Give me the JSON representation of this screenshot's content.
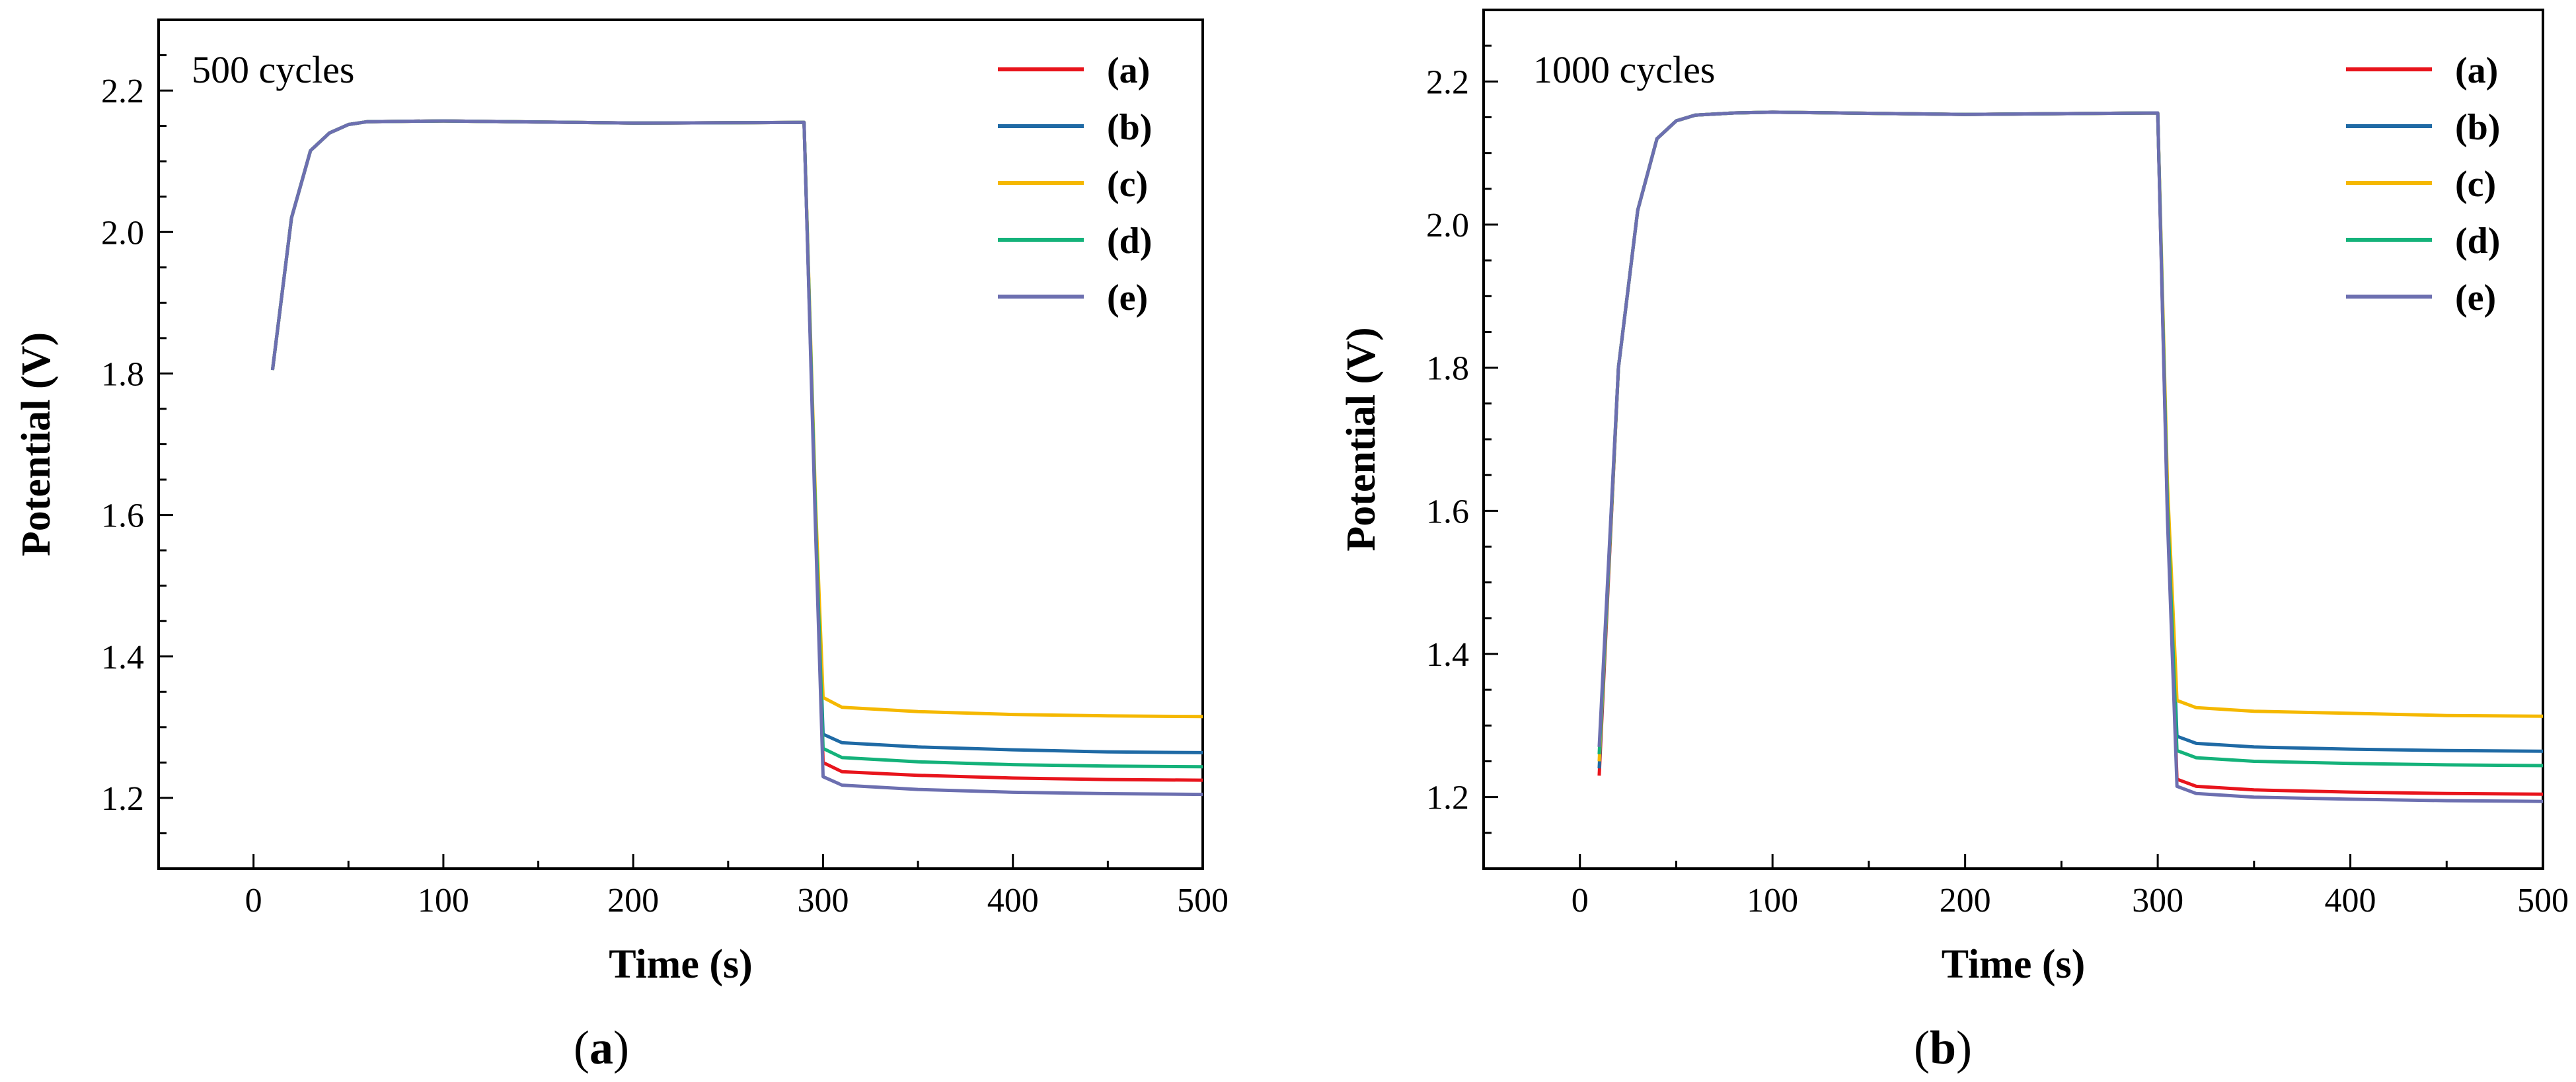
{
  "chart_data": [
    {
      "type": "line",
      "panel_label": "a",
      "annotation": "500 cycles",
      "xlabel": "Time (s)",
      "ylabel": "Potential (V)",
      "xlim": [
        -50,
        500
      ],
      "ylim": [
        1.1,
        2.3
      ],
      "xticks": [
        0,
        100,
        200,
        300,
        400,
        500
      ],
      "yticks": [
        1.2,
        1.4,
        1.6,
        1.8,
        2.0,
        2.2
      ],
      "ytick_labels": [
        "1.2",
        "1.4",
        "1.6",
        "1.8",
        "2.0",
        "2.2"
      ],
      "legend_position": "top-right",
      "series": [
        {
          "name": "(a)",
          "color": "#e8141c",
          "x": [
            10,
            20,
            30,
            40,
            50,
            60,
            100,
            200,
            290,
            296,
            300,
            310,
            350,
            400,
            450,
            500
          ],
          "y": [
            1.805,
            2.02,
            2.115,
            2.14,
            2.152,
            2.156,
            2.157,
            2.154,
            2.155,
            1.6,
            1.25,
            1.237,
            1.232,
            1.228,
            1.226,
            1.225
          ]
        },
        {
          "name": "(b)",
          "color": "#1f6aa5",
          "x": [
            10,
            20,
            30,
            40,
            50,
            60,
            100,
            200,
            290,
            296,
            300,
            310,
            350,
            400,
            450,
            500
          ],
          "y": [
            1.805,
            2.02,
            2.115,
            2.14,
            2.152,
            2.156,
            2.157,
            2.154,
            2.155,
            1.6,
            1.29,
            1.278,
            1.272,
            1.268,
            1.265,
            1.264
          ]
        },
        {
          "name": "(c)",
          "color": "#f5b800",
          "x": [
            10,
            20,
            30,
            40,
            50,
            60,
            100,
            200,
            290,
            296,
            300,
            310,
            350,
            400,
            450,
            500
          ],
          "y": [
            1.805,
            2.02,
            2.115,
            2.14,
            2.152,
            2.156,
            2.157,
            2.154,
            2.155,
            1.62,
            1.342,
            1.328,
            1.322,
            1.318,
            1.316,
            1.315
          ]
        },
        {
          "name": "(d)",
          "color": "#14b27a",
          "x": [
            10,
            20,
            30,
            40,
            50,
            60,
            100,
            200,
            290,
            296,
            300,
            310,
            350,
            400,
            450,
            500
          ],
          "y": [
            1.805,
            2.02,
            2.115,
            2.14,
            2.152,
            2.156,
            2.157,
            2.154,
            2.155,
            1.6,
            1.27,
            1.257,
            1.251,
            1.247,
            1.245,
            1.244
          ]
        },
        {
          "name": "(e)",
          "color": "#6c6fb0",
          "x": [
            10,
            20,
            30,
            40,
            50,
            60,
            100,
            200,
            290,
            296,
            300,
            310,
            350,
            400,
            450,
            500
          ],
          "y": [
            1.805,
            2.02,
            2.115,
            2.14,
            2.152,
            2.156,
            2.157,
            2.154,
            2.155,
            1.58,
            1.23,
            1.218,
            1.212,
            1.208,
            1.206,
            1.205
          ]
        }
      ]
    },
    {
      "type": "line",
      "panel_label": "b",
      "annotation": "1000 cycles",
      "xlabel": "Time (s)",
      "ylabel": "Potential (V)",
      "xlim": [
        -50,
        500
      ],
      "ylim": [
        1.1,
        2.3
      ],
      "xticks": [
        0,
        100,
        200,
        300,
        400,
        500
      ],
      "yticks": [
        1.2,
        1.4,
        1.6,
        1.8,
        2.0,
        2.2
      ],
      "ytick_labels": [
        "1.2",
        "1.4",
        "1.6",
        "1.8",
        "2.0",
        "2.2"
      ],
      "legend_position": "top-right",
      "series": [
        {
          "name": "(a)",
          "color": "#e8141c",
          "x": [
            10,
            20,
            30,
            40,
            50,
            60,
            80,
            100,
            200,
            300,
            305,
            310,
            320,
            350,
            400,
            450,
            500
          ],
          "y": [
            1.23,
            1.8,
            2.02,
            2.12,
            2.145,
            2.153,
            2.156,
            2.157,
            2.154,
            2.156,
            1.6,
            1.225,
            1.215,
            1.21,
            1.207,
            1.205,
            1.204
          ]
        },
        {
          "name": "(b)",
          "color": "#1f6aa5",
          "x": [
            10,
            20,
            30,
            40,
            50,
            60,
            80,
            100,
            200,
            300,
            305,
            310,
            320,
            350,
            400,
            450,
            500
          ],
          "y": [
            1.24,
            1.8,
            2.02,
            2.12,
            2.145,
            2.153,
            2.156,
            2.157,
            2.154,
            2.156,
            1.62,
            1.285,
            1.275,
            1.27,
            1.267,
            1.265,
            1.264
          ]
        },
        {
          "name": "(c)",
          "color": "#f5b800",
          "x": [
            10,
            20,
            30,
            40,
            50,
            60,
            80,
            100,
            200,
            300,
            305,
            310,
            320,
            350,
            400,
            450,
            500
          ],
          "y": [
            1.25,
            1.8,
            2.02,
            2.12,
            2.145,
            2.153,
            2.156,
            2.157,
            2.154,
            2.156,
            1.64,
            1.335,
            1.325,
            1.32,
            1.317,
            1.314,
            1.313
          ]
        },
        {
          "name": "(d)",
          "color": "#14b27a",
          "x": [
            10,
            20,
            30,
            40,
            50,
            60,
            80,
            100,
            200,
            300,
            305,
            310,
            320,
            350,
            400,
            450,
            500
          ],
          "y": [
            1.26,
            1.8,
            2.02,
            2.12,
            2.145,
            2.153,
            2.156,
            2.157,
            2.154,
            2.156,
            1.61,
            1.265,
            1.255,
            1.25,
            1.247,
            1.245,
            1.244
          ]
        },
        {
          "name": "(e)",
          "color": "#6c6fb0",
          "x": [
            10,
            20,
            30,
            40,
            50,
            60,
            80,
            100,
            200,
            300,
            305,
            310,
            320,
            350,
            400,
            450,
            500
          ],
          "y": [
            1.27,
            1.8,
            2.02,
            2.12,
            2.145,
            2.153,
            2.156,
            2.157,
            2.154,
            2.156,
            1.59,
            1.215,
            1.205,
            1.2,
            1.197,
            1.195,
            1.194
          ]
        }
      ]
    }
  ]
}
